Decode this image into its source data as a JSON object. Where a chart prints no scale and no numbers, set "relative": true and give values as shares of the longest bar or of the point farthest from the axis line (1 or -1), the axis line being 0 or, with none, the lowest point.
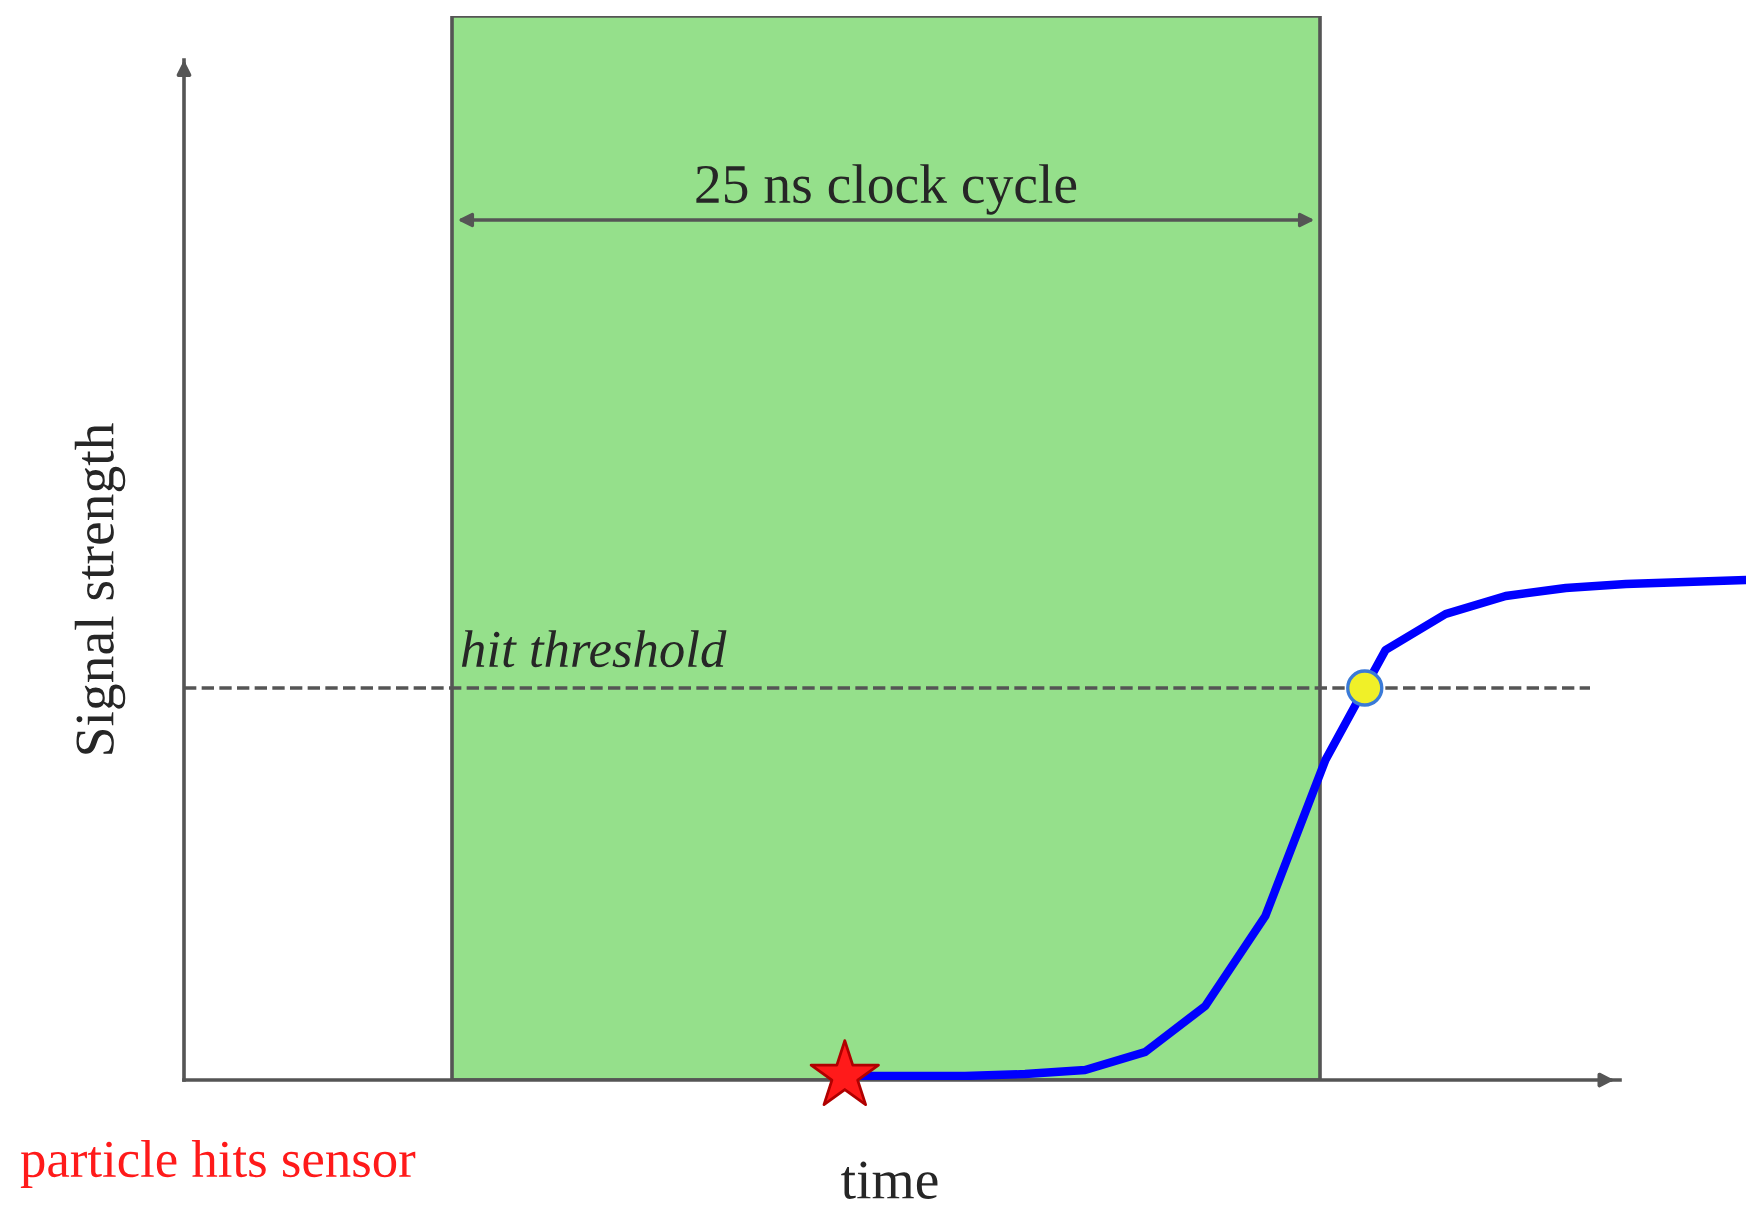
{
  "chart_data": {
    "type": "line",
    "relative": true,
    "xlabel": "time",
    "categories": [
      null,
      null,
      null,
      null,
      null,
      null,
      null,
      null,
      null,
      null,
      null,
      null,
      null,
      null,
      null,
      null
    ],
    "series": [
      {
        "color": "#0000ff",
        "values": [
          0.008,
          0.008,
          0.008,
          0.012,
          0.02,
          0.056,
          0.148,
          0.328,
          0.64,
          0.86,
          0.932,
          0.968,
          0.984,
          0.992,
          0.996,
          1.0
        ]
      }
    ],
    "ref_lines": [
      {
        "axis": "y",
        "value": 0.784,
        "label": "hit threshold",
        "line_style": "dashed",
        "color": "#555555"
      }
    ],
    "annotations": [
      "25 ns clock cycle",
      "particle hits sensor",
      "Signal strength"
    ]
  }
}
